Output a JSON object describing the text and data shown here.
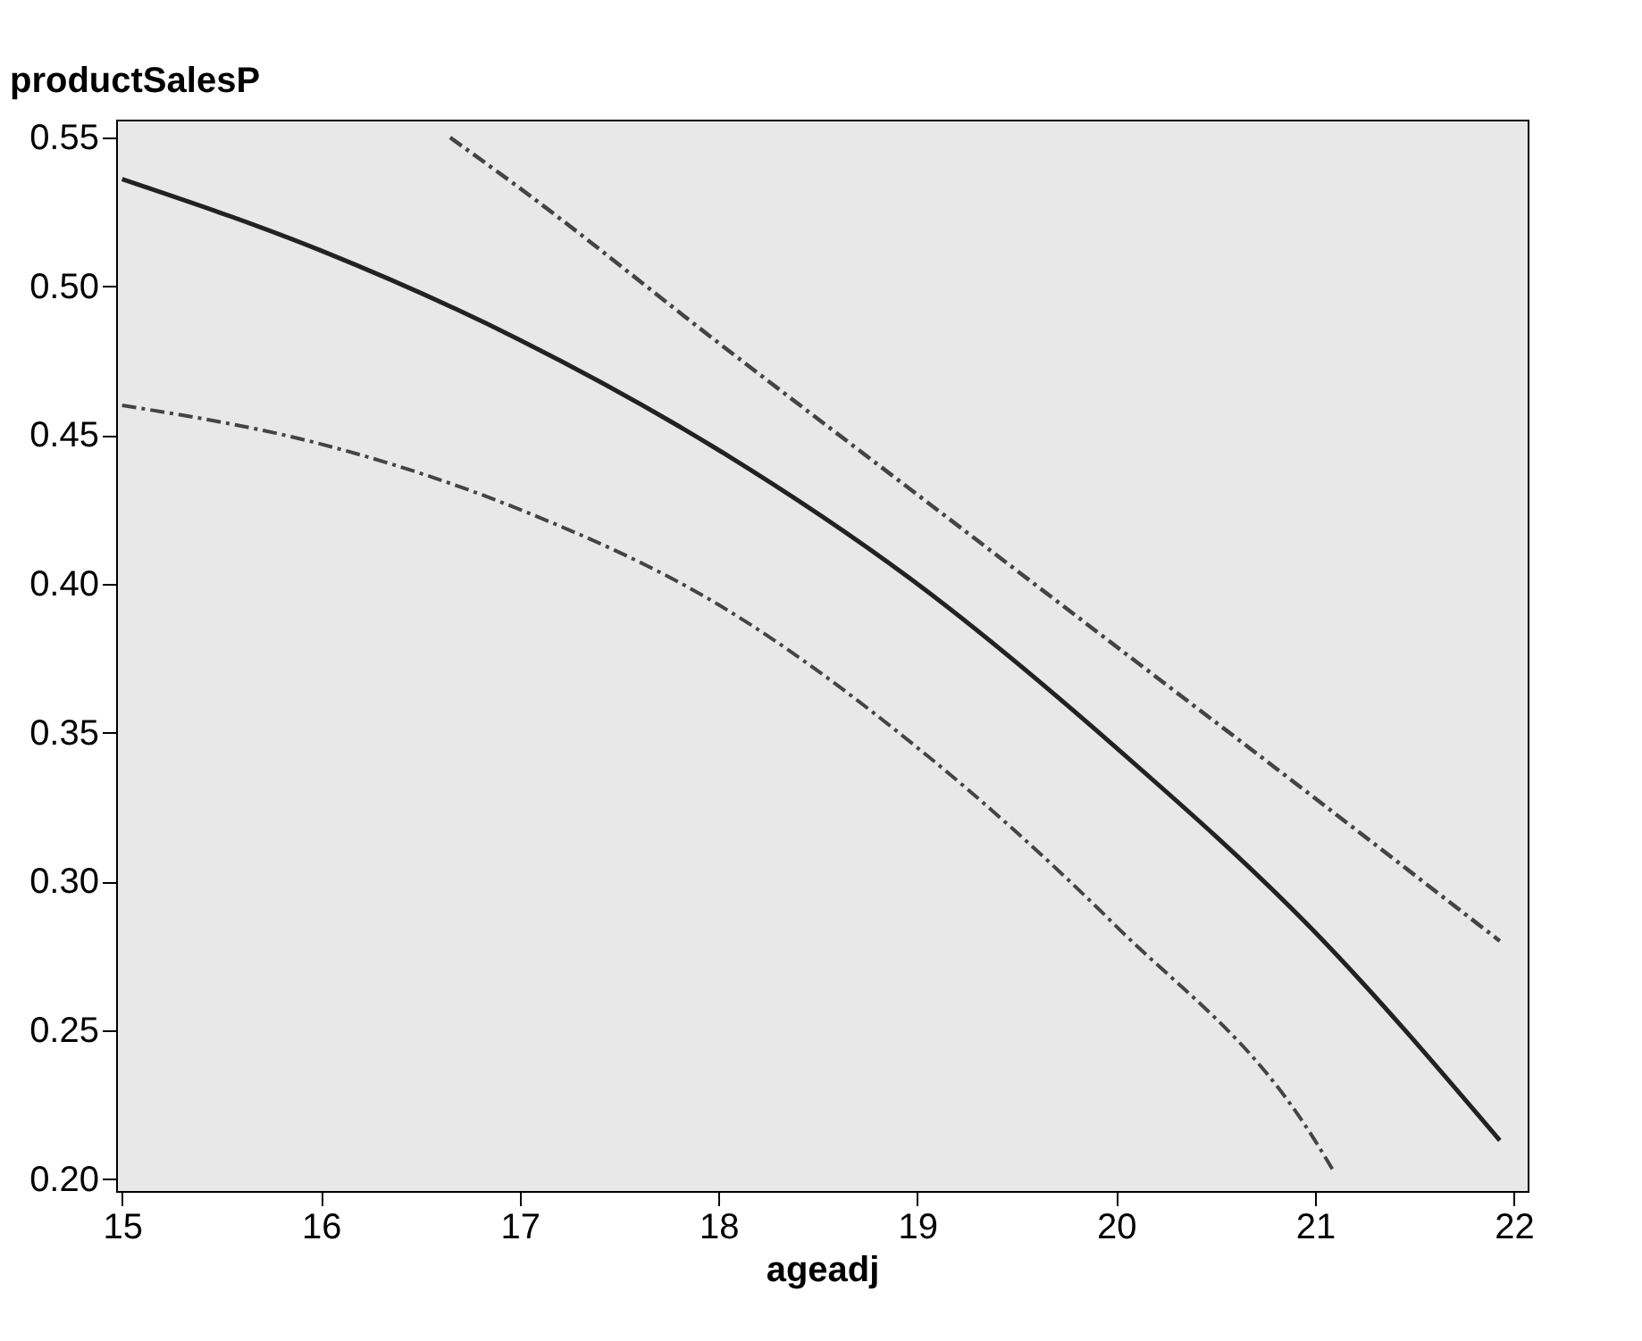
{
  "chart_data": {
    "type": "line",
    "ylabel": "productSalesP",
    "xlabel": "ageadj",
    "xlim": [
      14.97,
      22.07
    ],
    "ylim": [
      0.196,
      0.556
    ],
    "xticks": [
      15,
      16,
      17,
      18,
      19,
      20,
      21,
      22
    ],
    "yticks": [
      {
        "value": 0.2,
        "label": "0.20"
      },
      {
        "value": 0.25,
        "label": "0.25"
      },
      {
        "value": 0.3,
        "label": "0.30"
      },
      {
        "value": 0.35,
        "label": "0.35"
      },
      {
        "value": 0.4,
        "label": "0.40"
      },
      {
        "value": 0.45,
        "label": "0.45"
      },
      {
        "value": 0.5,
        "label": "0.50"
      },
      {
        "value": 0.55,
        "label": "0.55"
      }
    ],
    "grid": false,
    "legend": false,
    "marker": "none",
    "series": [
      {
        "color": "#222222",
        "line_style": "solid",
        "x": [
          15,
          16,
          17,
          18,
          19,
          20,
          21,
          21.93
        ],
        "values": [
          0.536,
          0.512,
          0.482,
          0.445,
          0.4,
          0.345,
          0.283,
          0.213
        ]
      },
      {
        "color": "#444444",
        "line_style": "dashed",
        "x": [
          16.65,
          17,
          18,
          19,
          20,
          21,
          21.93
        ],
        "values": [
          0.55,
          0.533,
          0.481,
          0.43,
          0.379,
          0.328,
          0.28
        ]
      },
      {
        "color": "#444444",
        "line_style": "dashed",
        "x": [
          15,
          16,
          17,
          18,
          19,
          20,
          21,
          21.1
        ],
        "values": [
          0.46,
          0.447,
          0.425,
          0.393,
          0.345,
          0.285,
          0.213,
          0.202
        ]
      }
    ]
  }
}
